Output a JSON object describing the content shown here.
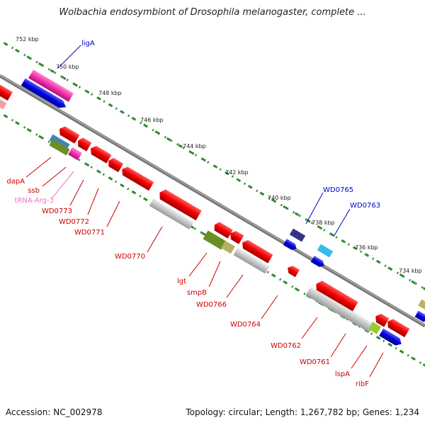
{
  "title": "Wolbachia endosymbiont of Drosophila melanogaster, complete ...",
  "footer": {
    "accession": "Accession: NC_002978",
    "topology": "Topology: circular; Length: 1,267,782 bp; Genes: 1,234"
  },
  "ruler_ticks": [
    "752 kbp",
    "750 kbp",
    "748 kbp",
    "746 kbp",
    "744 kbp",
    "742 kbp",
    "740 kbp",
    "738 kbp",
    "736 kbp",
    "734 kbp"
  ],
  "forward_labels": [
    "ligA",
    "WD0765",
    "WD0763"
  ],
  "reverse_labels": [
    "dapA",
    "ssb",
    "tRNA-Arg-3",
    "WD0773",
    "WD0772",
    "WD0771",
    "WD0770",
    "lgt",
    "smpB",
    "WD0766",
    "WD0764",
    "WD0762",
    "WD0761",
    "lspA",
    "ribF"
  ],
  "colors": {
    "backbone": "#7a7a7a",
    "dots": "#2e8b2e",
    "cds_forward": "#0000dd",
    "cds_reverse": "#ee0000",
    "pseudo": "#bbbbbb",
    "trna": "#ee44aa",
    "olive": "#6b8e23",
    "khaki": "#b8b060",
    "cyan": "#33bbee",
    "navy": "#333388",
    "steel": "#4682b4",
    "label_blue": "#0000cc",
    "label_red": "#cc0000",
    "label_pink": "#ee77bb"
  }
}
